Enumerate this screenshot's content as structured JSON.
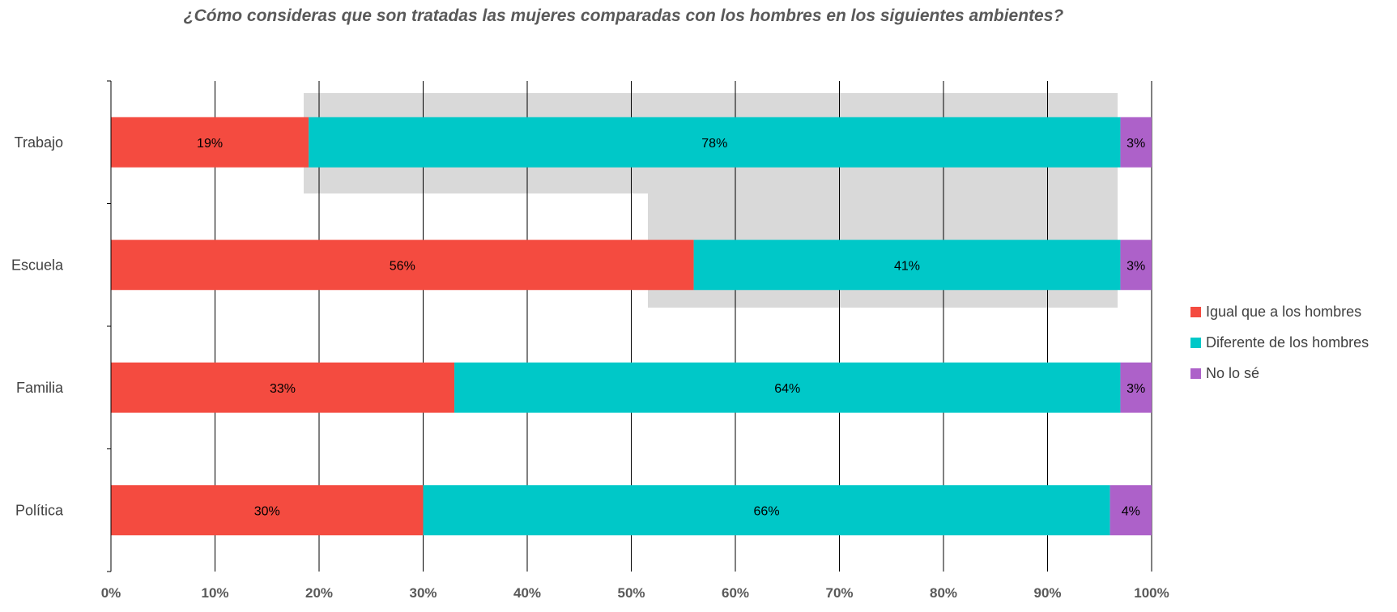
{
  "chart_data": {
    "type": "bar",
    "orientation": "horizontal",
    "stacked": true,
    "title": "¿Cómo consideras que son tratadas las mujeres comparadas con los hombres en los siguientes ambientes?",
    "categories": [
      "Trabajo",
      "Escuela",
      "Familia",
      "Política"
    ],
    "series": [
      {
        "name": "Igual que a los hombres",
        "color": "#f44b40",
        "values": [
          19,
          56,
          33,
          30
        ],
        "labels": [
          "19%",
          "56%",
          "33%",
          "30%"
        ]
      },
      {
        "name": "Diferente de los hombres",
        "color": "#00c8c8",
        "values": [
          78,
          41,
          64,
          66
        ],
        "labels": [
          "78%",
          "41%",
          "64%",
          "66%"
        ]
      },
      {
        "name": "No lo sé",
        "color": "#ad61c9",
        "values": [
          3,
          3,
          3,
          4
        ],
        "labels": [
          "3%",
          "3%",
          "3%",
          "4%"
        ]
      }
    ],
    "xlim": [
      0,
      100
    ],
    "xticks": [
      "0%",
      "10%",
      "20%",
      "30%",
      "40%",
      "50%",
      "60%",
      "70%",
      "80%",
      "90%",
      "100%"
    ],
    "grid": true,
    "legend_position": "right"
  }
}
